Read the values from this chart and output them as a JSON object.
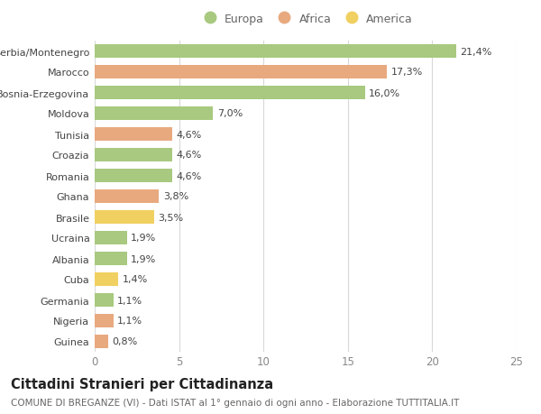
{
  "countries": [
    "Serbia/Montenegro",
    "Marocco",
    "Bosnia-Erzegovina",
    "Moldova",
    "Tunisia",
    "Croazia",
    "Romania",
    "Ghana",
    "Brasile",
    "Ucraina",
    "Albania",
    "Cuba",
    "Germania",
    "Nigeria",
    "Guinea"
  ],
  "values": [
    21.4,
    17.3,
    16.0,
    7.0,
    4.6,
    4.6,
    4.6,
    3.8,
    3.5,
    1.9,
    1.9,
    1.4,
    1.1,
    1.1,
    0.8
  ],
  "labels": [
    "21,4%",
    "17,3%",
    "16,0%",
    "7,0%",
    "4,6%",
    "4,6%",
    "4,6%",
    "3,8%",
    "3,5%",
    "1,9%",
    "1,9%",
    "1,4%",
    "1,1%",
    "1,1%",
    "0,8%"
  ],
  "categories": [
    "Europa",
    "Africa",
    "Europa",
    "Europa",
    "Africa",
    "Europa",
    "Europa",
    "Africa",
    "America",
    "Europa",
    "Europa",
    "America",
    "Europa",
    "Africa",
    "Africa"
  ],
  "color_map": {
    "Europa": "#a8c97f",
    "Africa": "#e8a97f",
    "America": "#f0d060"
  },
  "xlim": [
    0,
    25
  ],
  "xticks": [
    0,
    5,
    10,
    15,
    20,
    25
  ],
  "title": "Cittadini Stranieri per Cittadinanza",
  "subtitle": "COMUNE DI BREGANZE (VI) - Dati ISTAT al 1° gennaio di ogni anno - Elaborazione TUTTITALIA.IT",
  "background_color": "#ffffff",
  "grid_color": "#d8d8d8",
  "bar_label_fontsize": 8.0,
  "ytick_fontsize": 8.0,
  "xtick_fontsize": 8.5,
  "legend_fontsize": 9.0,
  "title_fontsize": 10.5,
  "subtitle_fontsize": 7.5
}
